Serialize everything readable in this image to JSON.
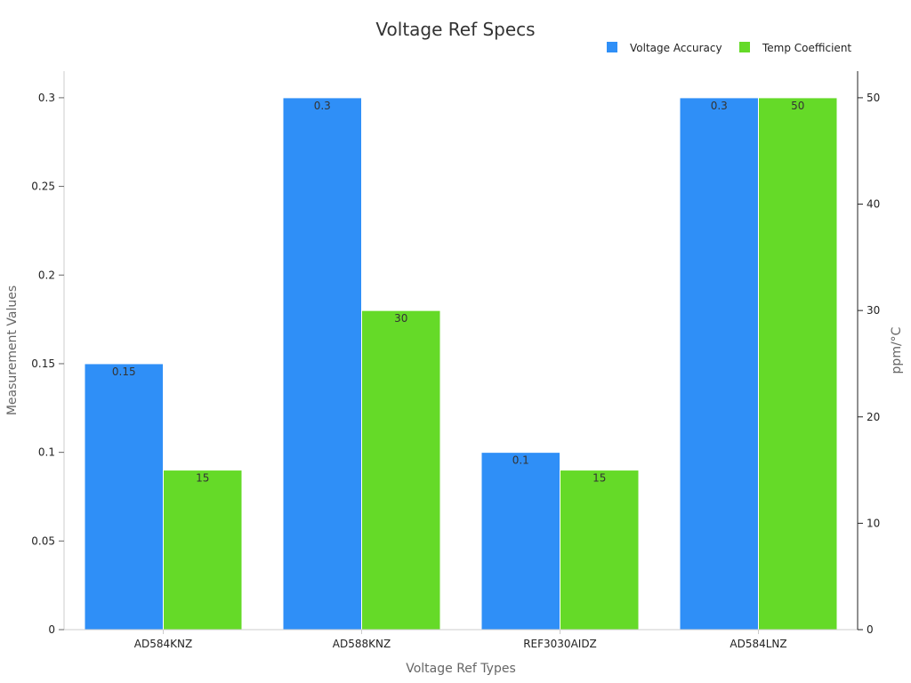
{
  "chart_data": {
    "type": "bar",
    "title": "Voltage Ref Specs",
    "xlabel": "Voltage Ref Types",
    "ylabel": "Measurement Values",
    "y2label": "ppm/°C",
    "categories": [
      "AD584KNZ",
      "AD588KNZ",
      "REF3030AIDZ",
      "AD584LNZ"
    ],
    "ylim": [
      0,
      0.315
    ],
    "y2lim": [
      0,
      52.5
    ],
    "yticks": [
      "0",
      "0.05",
      "0.1",
      "0.15",
      "0.2",
      "0.25",
      "0.3"
    ],
    "y2ticks": [
      "0",
      "10",
      "20",
      "30",
      "40",
      "50"
    ],
    "legend_position": "top-right",
    "grid": false,
    "series": [
      {
        "name": "Voltage Accuracy",
        "axis": "left",
        "color": "#2f8ff7",
        "values": [
          0.15,
          0.3,
          0.1,
          0.3
        ],
        "labels": [
          "0.15",
          "0.3",
          "0.1",
          "0.3"
        ]
      },
      {
        "name": "Temp Coefficient",
        "axis": "right",
        "color": "#65da28",
        "values": [
          15,
          30,
          15,
          50
        ],
        "labels": [
          "15",
          "30",
          "15",
          "50"
        ]
      }
    ]
  }
}
